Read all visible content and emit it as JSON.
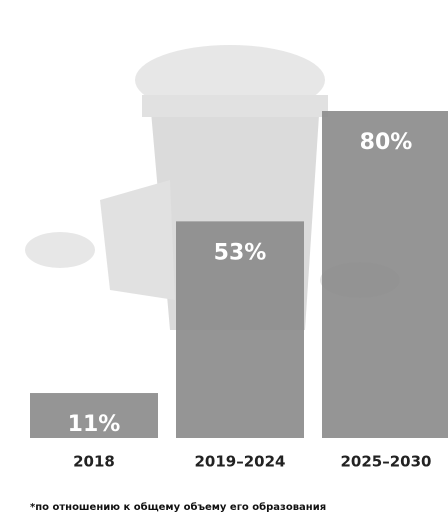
{
  "chart_data": {
    "type": "bar",
    "categories": [
      "2018",
      "2019–2024",
      "2025–2030"
    ],
    "values": [
      11,
      53,
      80
    ],
    "value_labels": [
      "11%",
      "53%",
      "80%"
    ],
    "color": "#8c8c8c",
    "footnote": "*по отношению к общему объему его образования"
  }
}
